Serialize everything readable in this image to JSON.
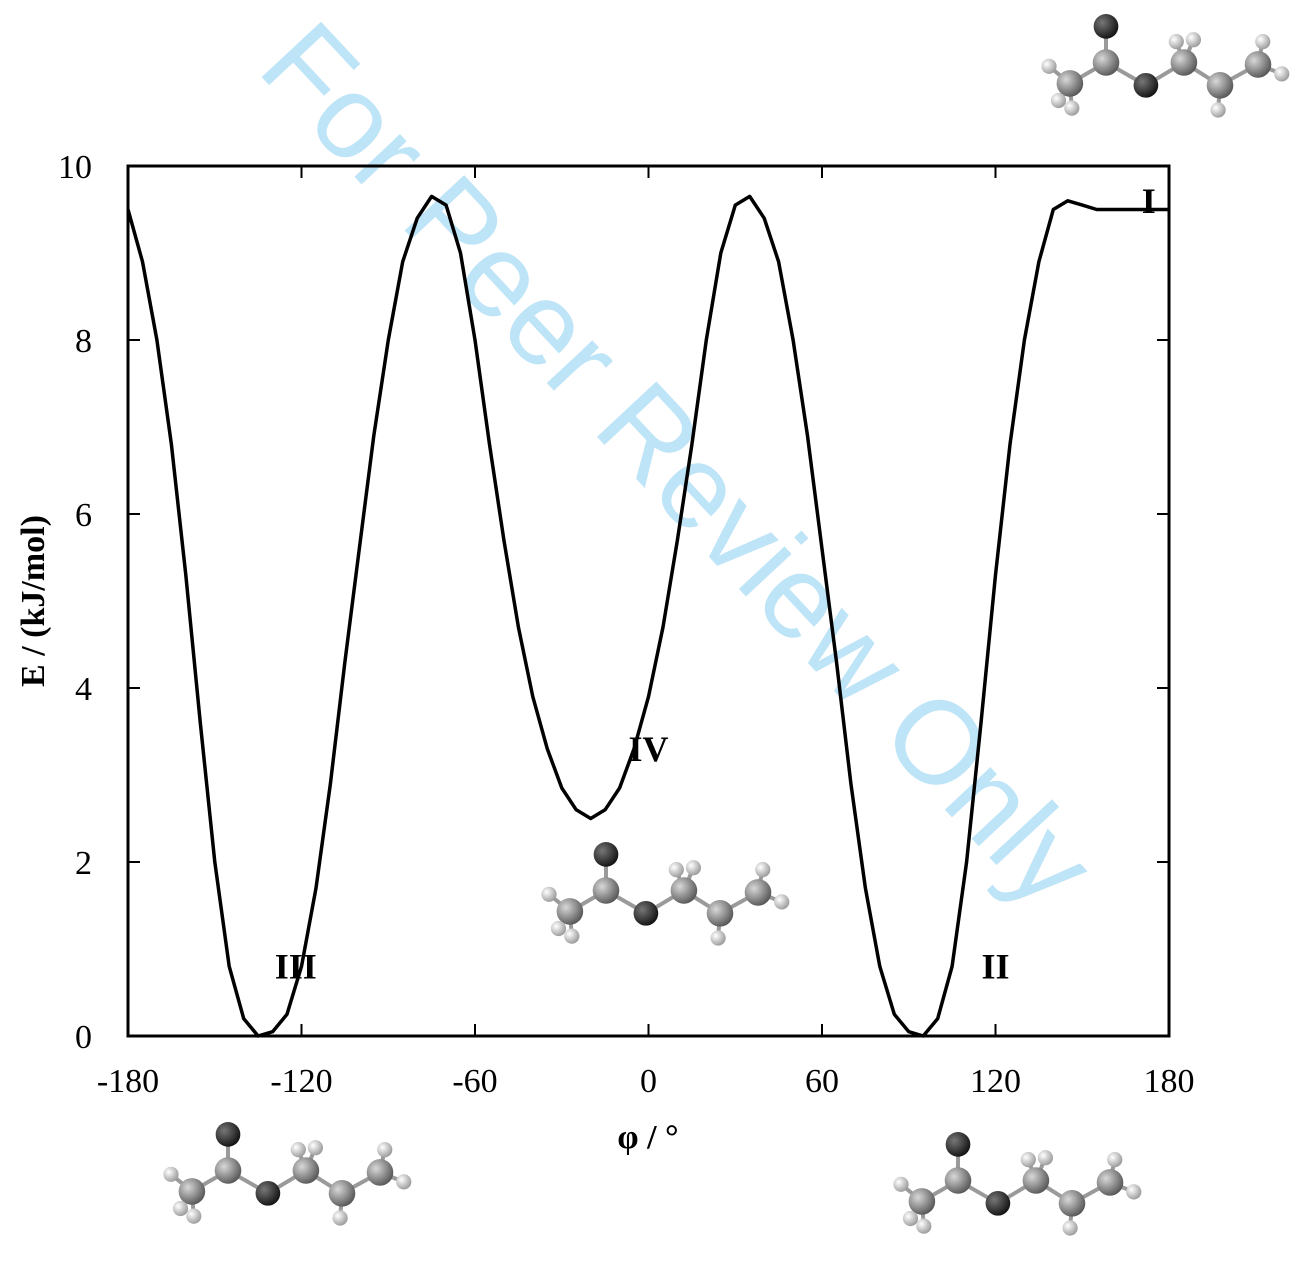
{
  "watermark": "For Peer Review Only",
  "chart_data": {
    "type": "line",
    "xlabel": "φ / °",
    "ylabel": "E / (kJ/mol)",
    "xlim": [
      -180,
      180
    ],
    "ylim": [
      0,
      10
    ],
    "xticks": [
      -180,
      -120,
      -60,
      0,
      60,
      120,
      180
    ],
    "yticks": [
      0,
      2,
      4,
      6,
      8,
      10
    ],
    "grid": false,
    "series": [
      {
        "color": "#000000",
        "x": [
          -180,
          -175,
          -170,
          -165,
          -160,
          -155,
          -150,
          -145,
          -140,
          -135,
          -130,
          -125,
          -120,
          -115,
          -110,
          -105,
          -100,
          -95,
          -90,
          -85,
          -80,
          -75,
          -70,
          -65,
          -60,
          -55,
          -50,
          -45,
          -40,
          -35,
          -30,
          -25,
          -20,
          -15,
          -10,
          -5,
          0,
          5,
          10,
          15,
          20,
          25,
          30,
          35,
          40,
          45,
          50,
          55,
          60,
          65,
          70,
          75,
          80,
          85,
          90,
          95,
          100,
          105,
          110,
          115,
          120,
          125,
          130,
          135,
          140,
          145,
          150,
          155,
          160,
          165,
          170,
          175,
          180
        ],
        "y": [
          9.5,
          8.9,
          8.0,
          6.8,
          5.3,
          3.6,
          2.0,
          0.8,
          0.2,
          0.0,
          0.05,
          0.25,
          0.8,
          1.7,
          2.9,
          4.3,
          5.6,
          6.9,
          8.0,
          8.9,
          9.4,
          9.65,
          9.55,
          9.0,
          8.0,
          6.8,
          5.7,
          4.7,
          3.9,
          3.3,
          2.85,
          2.6,
          2.5,
          2.6,
          2.85,
          3.3,
          3.9,
          4.7,
          5.7,
          6.8,
          8.0,
          9.0,
          9.55,
          9.65,
          9.4,
          8.9,
          8.0,
          6.9,
          5.6,
          4.3,
          2.9,
          1.7,
          0.8,
          0.25,
          0.05,
          0.0,
          0.2,
          0.8,
          2.0,
          3.6,
          5.3,
          6.8,
          8.0,
          8.9,
          9.5,
          9.6,
          9.55,
          9.5,
          9.5,
          9.5,
          9.5,
          9.5,
          9.5
        ]
      }
    ],
    "annotations": [
      {
        "text": "I",
        "x": 173,
        "y": 9.6
      },
      {
        "text": "II",
        "x": 120,
        "y": 0.8
      },
      {
        "text": "III",
        "x": -122,
        "y": 0.8
      },
      {
        "text": "IV",
        "x": 0,
        "y": 3.3
      }
    ]
  }
}
